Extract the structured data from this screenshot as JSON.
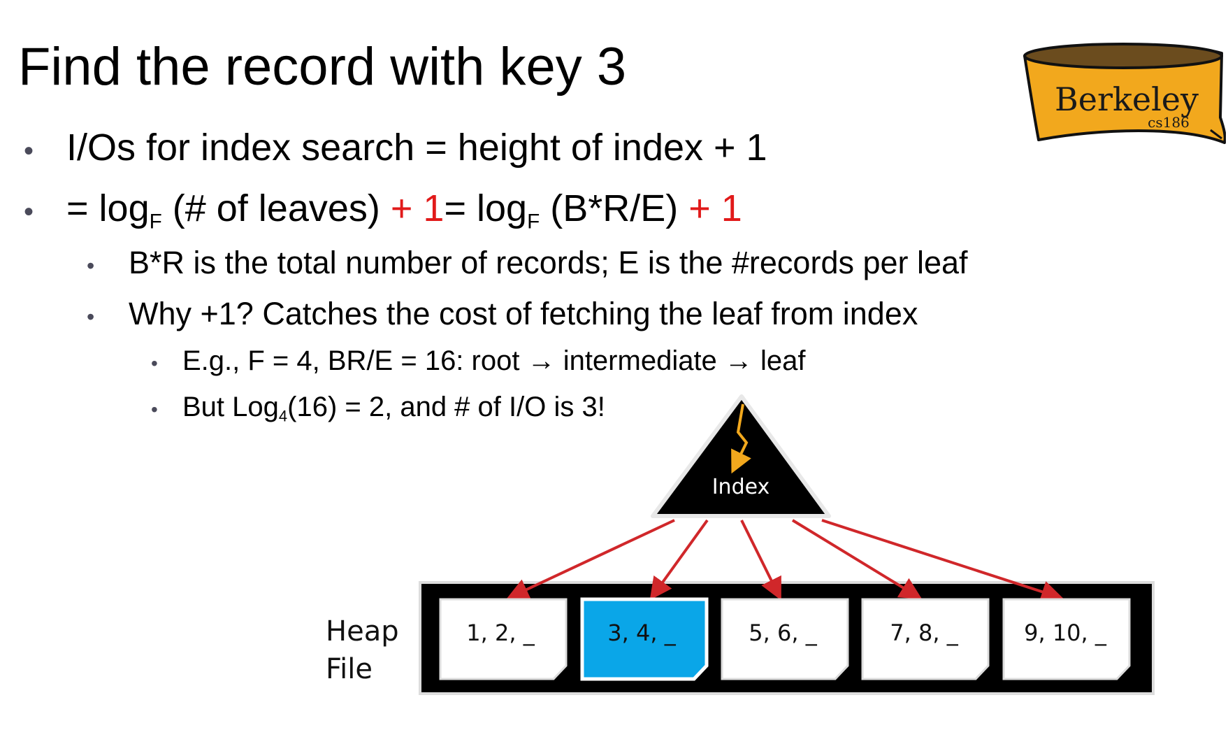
{
  "slide": {
    "title": "Find the record with key 3",
    "bullets": {
      "b1": "I/Os for index search = height of index + 1",
      "b2": {
        "p1": "= log",
        "sub1": "F",
        "p2": " (# of leaves) ",
        "red1": "+ 1",
        "p3": "= log",
        "sub2": "F",
        "p4": " (B*R/E) ",
        "red2": "+ 1"
      },
      "b2a": "B*R is the total number of records; E is the #records per leaf",
      "b2b": "Why +1? Catches the cost of fetching the leaf from index",
      "b3a": "E.g., F = 4, BR/E = 16: root → intermediate → leaf",
      "b3b": {
        "p1": "But Log",
        "sub": "4",
        "p2": "(16) = 2, and # of I/O is 3!"
      }
    }
  },
  "logo": {
    "text": "Berkeley",
    "subtext": "cs186",
    "color": "#f2a81d"
  },
  "diagram": {
    "index_label": "Index",
    "heap_label_line1": "Heap",
    "heap_label_line2": "File",
    "pages": [
      {
        "label": "1, 2, _",
        "highlighted": false
      },
      {
        "label": "3, 4, _",
        "highlighted": true
      },
      {
        "label": "5, 6, _",
        "highlighted": false
      },
      {
        "label": "7, 8, _",
        "highlighted": false
      },
      {
        "label": "9, 10, _",
        "highlighted": false
      }
    ],
    "colors": {
      "arrow": "#d0272a",
      "highlight": "#0aa6e8",
      "search_path": "#f2a81d"
    }
  }
}
